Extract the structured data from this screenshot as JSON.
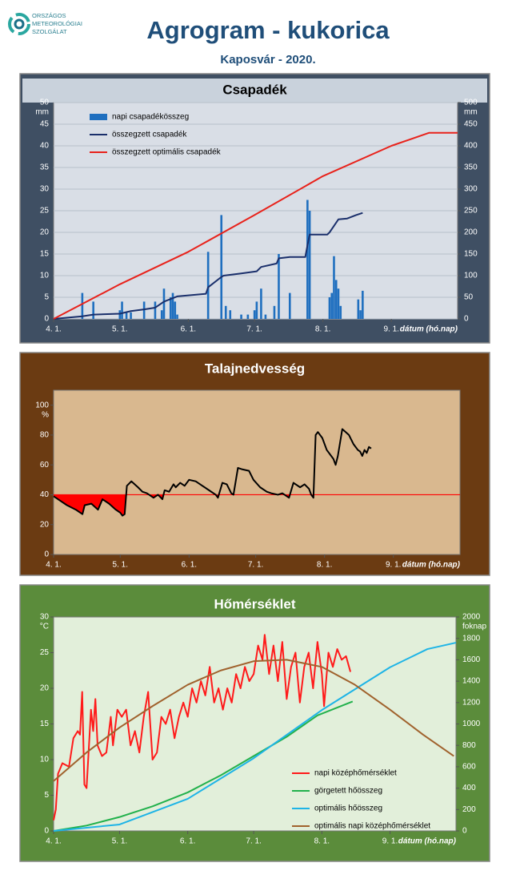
{
  "header": {
    "logo": [
      "ORSZÁGOS",
      "METEOROLÓGIAI",
      "SZOLGÁLAT"
    ],
    "title": "Agrogram - kukorica",
    "subtitle": "Kaposvár - 2020."
  },
  "chart_data": [
    {
      "type": "combo",
      "title": "Csapadék",
      "yunit": "mm",
      "y2unit": "mm",
      "xlabel": "dátum (hó.nap)",
      "xlim": [
        0,
        183
      ],
      "xticks": [
        {
          "value": 0,
          "label": "4. 1."
        },
        {
          "value": 30,
          "label": "5. 1."
        },
        {
          "value": 61,
          "label": "6. 1."
        },
        {
          "value": 91,
          "label": "7. 1."
        },
        {
          "value": 122,
          "label": "8. 1."
        },
        {
          "value": 153,
          "label": "9. 1."
        }
      ],
      "ylim": [
        0,
        50
      ],
      "yticks": [
        0,
        5,
        10,
        15,
        20,
        25,
        30,
        35,
        40,
        45,
        50
      ],
      "y2lim": [
        0,
        500
      ],
      "y2ticks": [
        0,
        50,
        100,
        150,
        200,
        250,
        300,
        350,
        400,
        450,
        500
      ],
      "grid": true,
      "legend": "upper left",
      "series": [
        {
          "name": "napi csapadékösszeg",
          "type": "bar",
          "color": "#1f6fbf",
          "x": [
            13,
            18,
            30,
            31,
            33,
            35,
            41,
            46,
            49,
            50,
            53,
            54,
            55,
            56,
            70,
            76,
            78,
            80,
            85,
            88,
            91,
            92,
            94,
            96,
            100,
            102,
            107,
            115,
            116,
            125,
            126,
            127,
            128,
            129,
            130,
            138,
            139,
            140
          ],
          "values": [
            6,
            4,
            2,
            4,
            1.5,
            1.5,
            4,
            4,
            2,
            7,
            5,
            6,
            4,
            1,
            15.5,
            24,
            3,
            2,
            1,
            1,
            2,
            4,
            7,
            1,
            3,
            15,
            6,
            27.5,
            25,
            5,
            6,
            14.5,
            9,
            7,
            3,
            4.5,
            2,
            6.5
          ]
        },
        {
          "name": "összegzett csapadék",
          "type": "line",
          "axis": "y2",
          "color": "#1a2f6b",
          "x": [
            0,
            13,
            18,
            30,
            35,
            41,
            46,
            50,
            56,
            69,
            70,
            76,
            77,
            85,
            92,
            94,
            101,
            102,
            107,
            114,
            115,
            116,
            124,
            125,
            127,
            129,
            133,
            137,
            140
          ],
          "values": [
            0,
            6,
            10,
            12,
            18,
            22,
            26,
            40,
            52,
            58,
            73,
            97,
            100,
            105,
            110,
            120,
            128,
            140,
            143,
            143,
            170,
            195,
            195,
            200,
            215,
            230,
            232,
            240,
            245
          ]
        },
        {
          "name": "összegzett optimális  csapadék",
          "type": "line",
          "axis": "y2",
          "color": "#e8221b",
          "x": [
            0,
            30,
            61,
            91,
            122,
            153,
            170,
            183
          ],
          "values": [
            0,
            80,
            155,
            240,
            330,
            400,
            430,
            430
          ]
        }
      ]
    },
    {
      "type": "line",
      "title": "Talajnedvesség",
      "yunit": "%",
      "xlabel": "dátum (hó.nap)",
      "xlim": [
        0,
        183
      ],
      "xticks": [
        {
          "value": 0,
          "label": "4. 1."
        },
        {
          "value": 30,
          "label": "5. 1."
        },
        {
          "value": 61,
          "label": "6. 1."
        },
        {
          "value": 91,
          "label": "7. 1."
        },
        {
          "value": 122,
          "label": "8. 1."
        },
        {
          "value": 153,
          "label": "9. 1."
        }
      ],
      "ylim": [
        0,
        110
      ],
      "yticks": [
        0,
        20,
        40,
        60,
        80,
        100
      ],
      "grid": false,
      "threshold": 40,
      "threshold_color": "#ff0000",
      "series": [
        {
          "color": "#000000",
          "x": [
            0,
            3,
            6,
            10,
            13,
            14,
            17,
            20,
            22,
            25,
            28,
            30,
            31,
            32,
            33,
            35,
            38,
            40,
            42,
            45,
            47,
            49,
            50,
            52,
            54,
            55,
            57,
            59,
            61,
            64,
            67,
            70,
            73,
            74,
            76,
            78,
            80,
            81,
            83,
            85,
            88,
            90,
            93,
            96,
            98,
            101,
            103,
            105,
            106,
            108,
            111,
            113,
            115,
            116,
            117,
            118,
            119,
            121,
            123,
            126,
            127,
            128,
            130,
            133,
            135,
            137,
            138,
            139,
            140,
            141,
            142,
            143
          ],
          "values": [
            39,
            36,
            33,
            30,
            27,
            33,
            34,
            30,
            37,
            34,
            30,
            28,
            26,
            27,
            46,
            49,
            45,
            42,
            41,
            38,
            40,
            37,
            43,
            42,
            47,
            45,
            48,
            46,
            50,
            49,
            46,
            43,
            40,
            38,
            48,
            47,
            41,
            40,
            58,
            57,
            56,
            50,
            45,
            42,
            41,
            40,
            41,
            39,
            38,
            48,
            45,
            47,
            44,
            40,
            38,
            80,
            82,
            78,
            70,
            64,
            60,
            66,
            84,
            80,
            74,
            70,
            69,
            66,
            70,
            68,
            72,
            71
          ]
        }
      ]
    },
    {
      "type": "line",
      "title": "Hőmérséklet",
      "yunit": "°C",
      "y2unit": "foknap",
      "xlabel": "dátum (hó.nap)",
      "xlim": [
        0,
        183
      ],
      "xticks": [
        {
          "value": 0,
          "label": "4. 1."
        },
        {
          "value": 30,
          "label": "5. 1."
        },
        {
          "value": 61,
          "label": "6. 1."
        },
        {
          "value": 91,
          "label": "7. 1."
        },
        {
          "value": 122,
          "label": "8. 1."
        },
        {
          "value": 153,
          "label": "9. 1."
        }
      ],
      "ylim": [
        0,
        30
      ],
      "yticks": [
        0,
        5,
        10,
        15,
        20,
        25,
        30
      ],
      "y2lim": [
        0,
        2000
      ],
      "y2ticks": [
        0,
        200,
        400,
        600,
        800,
        1000,
        1200,
        1400,
        1600,
        1800,
        2000
      ],
      "grid": false,
      "legend": "lower right",
      "series": [
        {
          "name": "napi középhőmérséklet",
          "color": "#ff1a1a",
          "x": [
            0,
            1,
            2,
            4,
            7,
            9,
            11,
            12,
            13,
            14,
            15,
            17,
            18,
            19,
            20,
            22,
            24,
            26,
            27,
            29,
            31,
            33,
            35,
            37,
            39,
            41,
            43,
            45,
            47,
            49,
            51,
            53,
            55,
            57,
            59,
            61,
            63,
            65,
            67,
            69,
            71,
            73,
            75,
            77,
            79,
            81,
            83,
            85,
            87,
            89,
            91,
            93,
            95,
            96,
            98,
            100,
            102,
            104,
            106,
            108,
            110,
            112,
            114,
            116,
            118,
            120,
            122,
            123,
            125,
            127,
            129,
            131,
            133,
            135
          ],
          "values": [
            1.5,
            3,
            8,
            9.5,
            9,
            13,
            14,
            13.5,
            19.5,
            6.5,
            6,
            17,
            14,
            18.5,
            12,
            10.5,
            11,
            16,
            12,
            17,
            16,
            17,
            12,
            14,
            11,
            16,
            19.5,
            10,
            11,
            16,
            15,
            17,
            13,
            16,
            18,
            16,
            20,
            18,
            21,
            19,
            23,
            18,
            20,
            17,
            20,
            18,
            22,
            20,
            23,
            21,
            22,
            26,
            24,
            27.5,
            22,
            26,
            21,
            26.5,
            18.5,
            23,
            25,
            18,
            23,
            25,
            20,
            26.5,
            22,
            17.5,
            25,
            23,
            25.5,
            24,
            24.5,
            22.3
          ]
        },
        {
          "name": "görgetett hőösszeg",
          "axis": "y2",
          "color": "#22b14c",
          "x": [
            0,
            15,
            30,
            45,
            61,
            76,
            91,
            106,
            120,
            136
          ],
          "values": [
            0,
            50,
            130,
            230,
            360,
            520,
            700,
            880,
            1080,
            1210
          ]
        },
        {
          "name": "optimális hőösszeg",
          "axis": "y2",
          "color": "#1eb4e6",
          "x": [
            0,
            30,
            61,
            91,
            122,
            153,
            170,
            183
          ],
          "values": [
            0,
            60,
            300,
            680,
            1130,
            1530,
            1700,
            1760
          ]
        },
        {
          "name": "optimális napi középhőmérséklet",
          "color": "#a0622d",
          "x": [
            0,
            15,
            30,
            45,
            61,
            76,
            91,
            106,
            122,
            137,
            153,
            168,
            182
          ],
          "values": [
            7,
            11,
            14.5,
            17.5,
            20.5,
            22.5,
            23.8,
            24,
            23,
            20.5,
            17,
            13.5,
            10.5
          ]
        }
      ]
    }
  ]
}
